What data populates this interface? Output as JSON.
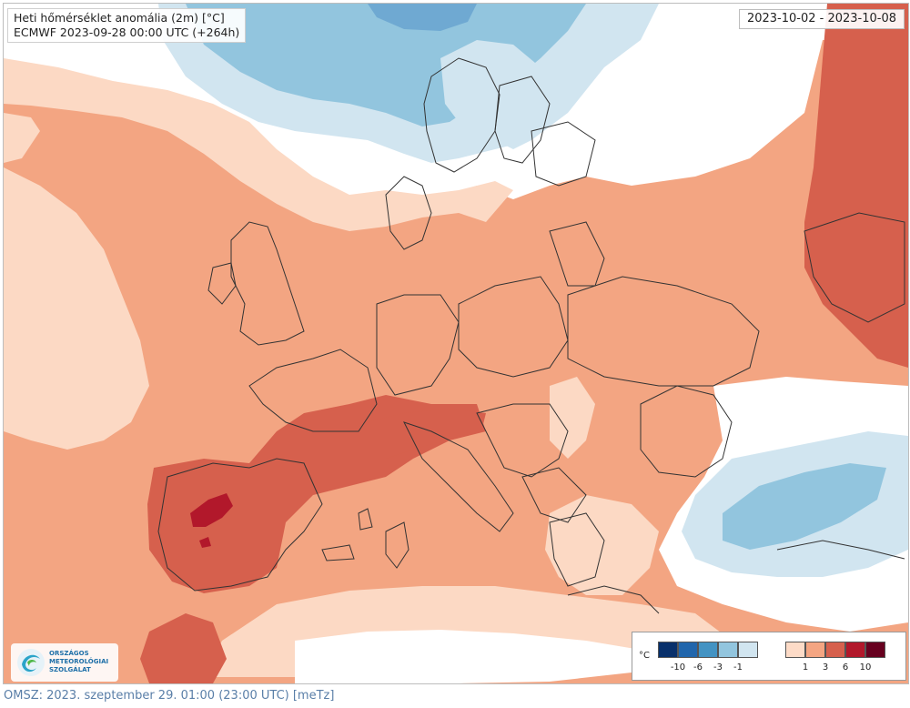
{
  "title": {
    "line1": "Heti hőmérséklet anomália (2m) [°C]",
    "line2": "ECMWF 2023-09-28 00:00 UTC (+264h)"
  },
  "period": "2023-10-02 - 2023-10-08",
  "legend": {
    "unit": "°C",
    "cold_colors": [
      "#08306b",
      "#2166ac",
      "#4393c3",
      "#92c5de",
      "#d1e5f0"
    ],
    "warm_colors": [
      "#fddbc7",
      "#f4a582",
      "#d6604d",
      "#b2182b",
      "#67001f"
    ],
    "cold_ticks": [
      "-10",
      "-6",
      "-3",
      "-1"
    ],
    "warm_ticks": [
      "1",
      "3",
      "6",
      "10"
    ]
  },
  "map_colors": {
    "base": "#f3a582",
    "light_warm": "#fcd9c4",
    "neutral": "#ffffff",
    "light_cold": "#d1e5f0",
    "cold": "#92c5de",
    "colder": "#6fa9d2",
    "warm": "#d6604d",
    "hot": "#b2182b",
    "border": "#333333"
  },
  "logo": {
    "line1": "ORSZÁGOS",
    "line2": "METEOROLÓGIAI",
    "line3": "SZOLGÁLAT"
  },
  "footer": "OMSZ: 2023. szeptember 29. 01:00 (23:00  UTC)  [meTz]"
}
